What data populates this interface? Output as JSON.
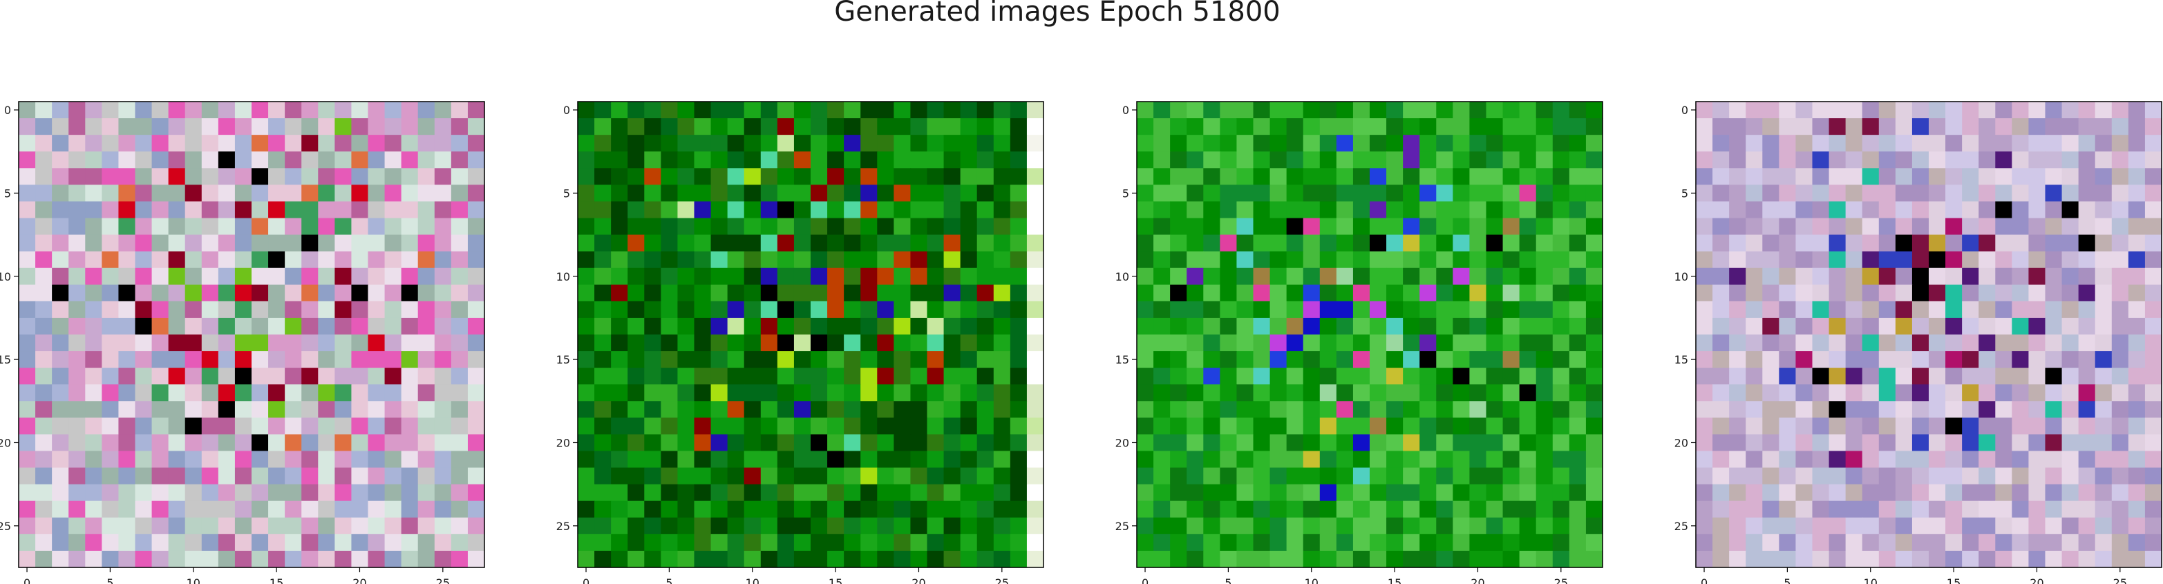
{
  "figure": {
    "title": "Generated images Epoch 51800"
  },
  "chart_data": [
    {
      "type": "heatmap",
      "x_ticks": [
        0,
        5,
        10,
        15,
        20,
        25
      ],
      "y_ticks": [
        0,
        5,
        10,
        15,
        20,
        25
      ],
      "xlim": [
        -0.5,
        27.5
      ],
      "ylim": [
        27.5,
        -0.5
      ],
      "grid": false,
      "palette": [
        "#c9a9d0",
        "#e8c8d8",
        "#b9d2c5",
        "#a9b4d8",
        "#d99ac9",
        "#e65ab8",
        "#c7c7c7",
        "#8fa0c7",
        "#d7e8e0",
        "#b85f9a",
        "#ece0ec",
        "#9bb4a8"
      ],
      "accents": [
        "#d40018",
        "#8a0022",
        "#000000",
        "#6fc21a",
        "#e07040",
        "#3a9f5c"
      ]
    },
    {
      "type": "heatmap",
      "x_ticks": [
        0,
        5,
        10,
        15,
        20,
        25
      ],
      "y_ticks": [
        0,
        5,
        10,
        15,
        20,
        25
      ],
      "xlim": [
        -0.5,
        27.5
      ],
      "ylim": [
        27.5,
        -0.5
      ],
      "grid": false,
      "palette": [
        "#007000",
        "#008a00",
        "#005c00",
        "#0a9a10",
        "#1aa81a",
        "#2f7a10",
        "#004400",
        "#33b026",
        "#006a1a",
        "#0d8020"
      ],
      "accents": [
        "#000000",
        "#2010b0",
        "#c04000",
        "#8a0000",
        "#a8e010",
        "#50d8a0",
        "#c8e8a0"
      ]
    },
    {
      "type": "heatmap",
      "x_ticks": [
        0,
        5,
        10,
        15,
        20,
        25
      ],
      "y_ticks": [
        0,
        5,
        10,
        15,
        20,
        25
      ],
      "xlim": [
        -0.5,
        27.5
      ],
      "ylim": [
        27.5,
        -0.5
      ],
      "grid": false,
      "palette": [
        "#0a9a0a",
        "#17a81a",
        "#2eb82a",
        "#008a00",
        "#46bb3c",
        "#0b7a10",
        "#56c84c",
        "#108c30"
      ],
      "accents": [
        "#1010c8",
        "#6020b0",
        "#c040e0",
        "#000000",
        "#a08040",
        "#e040a0",
        "#50d0c0",
        "#9bd8a0",
        "#2040e0",
        "#c8c030"
      ]
    },
    {
      "type": "heatmap",
      "x_ticks": [
        0,
        5,
        10,
        15,
        20,
        25
      ],
      "y_ticks": [
        0,
        5,
        10,
        15,
        20,
        25
      ],
      "xlim": [
        -0.5,
        27.5
      ],
      "ylim": [
        27.5,
        -0.5
      ],
      "grid": false,
      "palette": [
        "#c8b8d8",
        "#e0d0e0",
        "#b8a0c8",
        "#d0c8e8",
        "#a890c0",
        "#c0b0b0",
        "#e8d8e8",
        "#9890c8",
        "#d8b0d0",
        "#b8c0d8"
      ],
      "accents": [
        "#b0106a",
        "#501878",
        "#000000",
        "#3040c0",
        "#20c0a0",
        "#7c1040",
        "#c0a030"
      ]
    }
  ]
}
